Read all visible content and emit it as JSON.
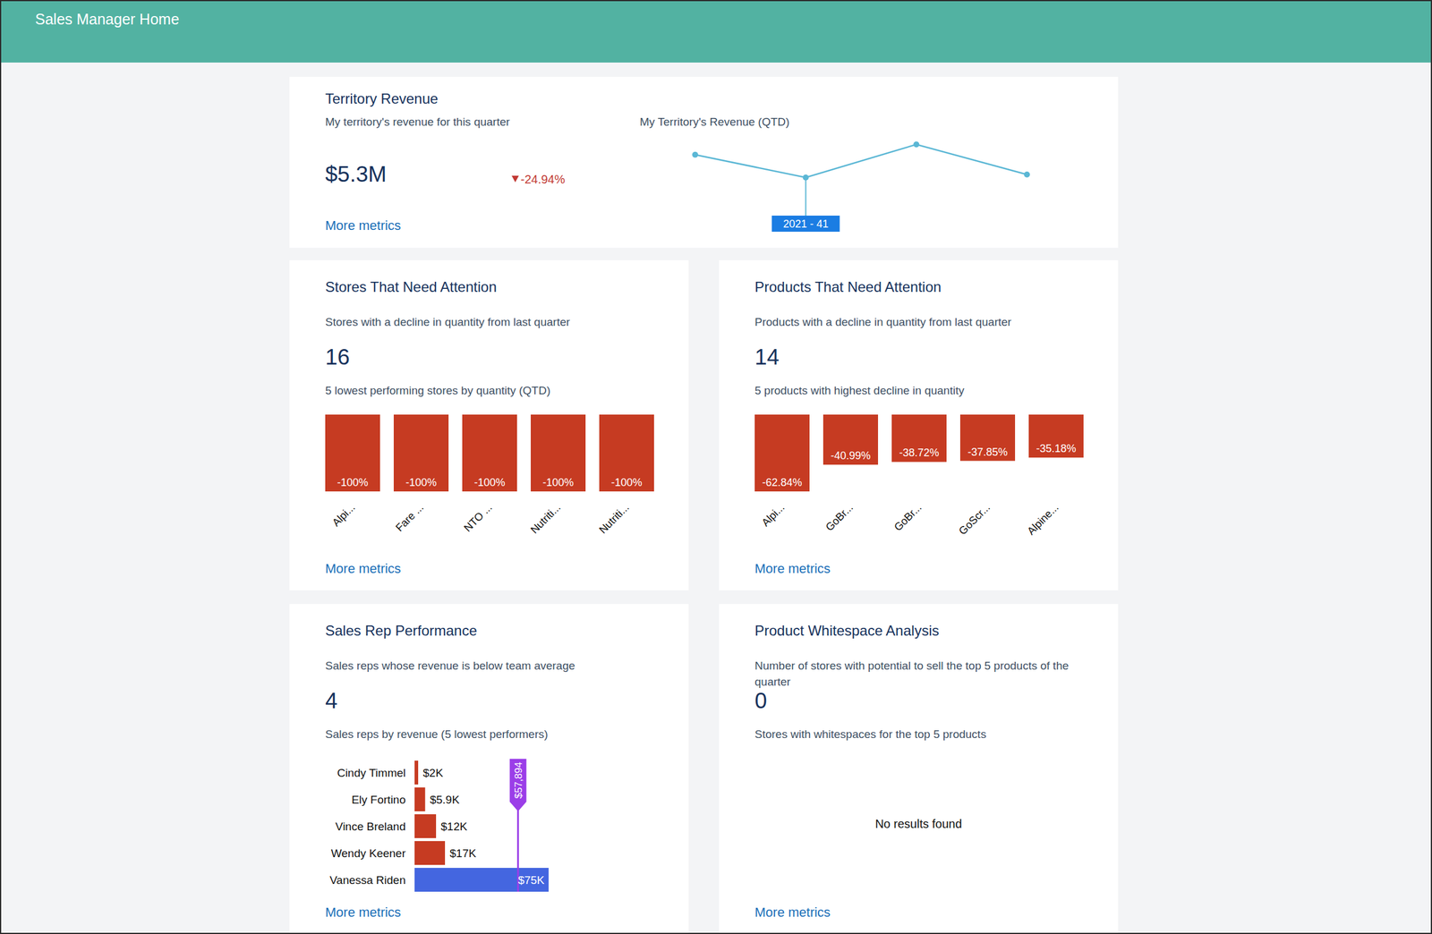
{
  "header": {
    "title": "Sales Manager Home"
  },
  "chart_data": [
    {
      "type": "line",
      "title": "Territory Revenue",
      "subtitle": "My territory's revenue for this quarter",
      "metric": "$5.3M",
      "change": "-24.94%",
      "chart_title": "My Territory's Revenue (QTD)",
      "categories": [
        null,
        "2021 - 41",
        null,
        null
      ],
      "values": [
        1.41,
        1.1,
        1.55,
        1.14
      ],
      "ylim": [
        0.8,
        1.7
      ],
      "tick_labels": false,
      "color": "#5bb7d5",
      "marker": "circle",
      "link": "More metrics"
    },
    {
      "type": "bar",
      "title": "Stores That Need Attention",
      "subtitle": "Stores with a decline in quantity from last quarter",
      "metric": 16,
      "chart_title": "5 lowest performing stores by quantity (QTD)",
      "categories": [
        "Alpi...",
        "Fare ...",
        "NTO ...",
        "Nutriti...",
        "Nutriti..."
      ],
      "values": [
        -100,
        -100,
        -100,
        -100,
        -100
      ],
      "value_labels": [
        "-100%",
        "-100%",
        "-100%",
        "-100%",
        "-100%"
      ],
      "ylim": [
        -100,
        0
      ],
      "data_labels": true,
      "tick_labels": "x",
      "color": "#c63b22",
      "link": "More metrics"
    },
    {
      "type": "bar",
      "title": "Products That Need Attention",
      "subtitle": "Products with a decline in quantity from last quarter",
      "metric": 14,
      "chart_title": "5 products with highest decline in quantity",
      "categories": [
        "Alpi...",
        "GoBr...",
        "GoBr...",
        "GoScr...",
        "Alpine..."
      ],
      "values": [
        -62.84,
        -40.99,
        -38.72,
        -37.85,
        -35.18
      ],
      "value_labels": [
        "-62.84%",
        "-40.99%",
        "-38.72%",
        "-37.85%",
        "-35.18%"
      ],
      "ylim": [
        -62.84,
        0
      ],
      "data_labels": true,
      "tick_labels": "x",
      "color": "#c63b22",
      "link": "More metrics"
    },
    {
      "type": "bar",
      "orientation": "horizontal",
      "title": "Sales Rep Performance",
      "subtitle": "Sales reps whose revenue is below team average",
      "metric": 4,
      "chart_title": "Sales reps by revenue (5 lowest performers)",
      "categories": [
        "Cindy Timmel",
        "Ely Fortino",
        "Vince Breland",
        "Wendy Keener",
        "Vanessa Riden"
      ],
      "values": [
        2000,
        5900,
        12000,
        17000,
        75000
      ],
      "value_labels": [
        "$2K",
        "$5.9K",
        "$12K",
        "$17K",
        "$75K"
      ],
      "colors": [
        "#c63b22",
        "#c63b22",
        "#c63b22",
        "#c63b22",
        "#4466e0"
      ],
      "xlim": [
        0,
        75000
      ],
      "reference_line": {
        "value": 57894,
        "label": "$57,894",
        "color": "#9b3ee8"
      },
      "data_labels": true,
      "tick_labels": "y",
      "link": "More metrics"
    },
    {
      "type": "bar",
      "title": "Product Whitespace Analysis",
      "subtitle": "Number of stores with potential to sell the top 5 products of the quarter",
      "metric": 0,
      "chart_title": "Stores with whitespaces for the top 5 products",
      "categories": [],
      "values": [],
      "message": "No results found",
      "link": "More metrics"
    }
  ]
}
